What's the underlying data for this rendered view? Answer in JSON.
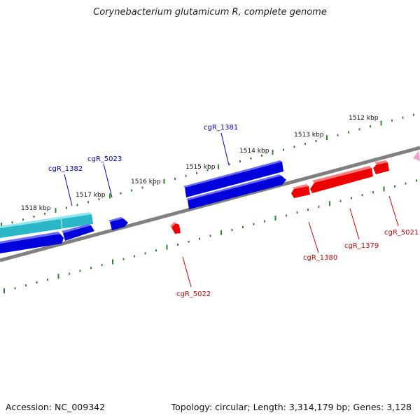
{
  "title": "Corynebacterium glutamicum R, complete genome",
  "accession": "Accession: NC_009342",
  "summary": "Topology: circular; Length: 3,314,179 bp; Genes: 3,128",
  "colors": {
    "backbone": "#808080",
    "ticks": "#2a8a2a",
    "forward_gene": "#0000dd",
    "forward_gene_alt": "#2ab8c8",
    "reverse_gene": "#ee0000",
    "marker": "#f4a0c8"
  },
  "tick_labels": [
    "1512 kbp",
    "1513 kbp",
    "1514 kbp",
    "1515 kbp",
    "1516 kbp",
    "1517 kbp",
    "1518 kbp"
  ],
  "gene_labels": {
    "forward": [
      "cgR_1381",
      "cgR_5023",
      "cgR_1382"
    ],
    "reverse": [
      "cgR_5022",
      "cgR_1380",
      "cgR_1379",
      "cgR_5021"
    ]
  }
}
